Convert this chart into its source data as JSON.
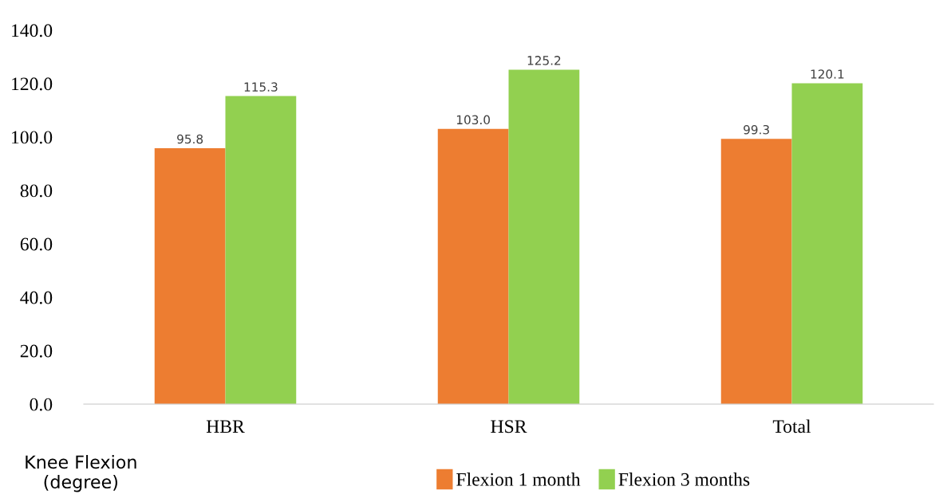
{
  "chart_data": {
    "type": "bar",
    "categories": [
      "HBR",
      "HSR",
      "Total"
    ],
    "series": [
      {
        "name": "Flexion 1 month",
        "color": "#ed7d31",
        "values": [
          95.8,
          103.0,
          99.3
        ],
        "value_labels": [
          "95.8",
          "103.0",
          "99.3"
        ]
      },
      {
        "name": "Flexion 3 months",
        "color": "#92d050",
        "values": [
          115.3,
          125.2,
          120.1
        ],
        "value_labels": [
          "115.3",
          "125.2",
          "120.1"
        ]
      }
    ],
    "ylabel": "Knee Flexion\n(degree)",
    "ylim": [
      0,
      140
    ],
    "yticks": [
      {
        "value": 0,
        "label": "0.0"
      },
      {
        "value": 20,
        "label": "20.0"
      },
      {
        "value": 40,
        "label": "40.0"
      },
      {
        "value": 60,
        "label": "60.0"
      },
      {
        "value": 80,
        "label": "80.0"
      },
      {
        "value": 100,
        "label": "100.0"
      },
      {
        "value": 120,
        "label": "120.0"
      },
      {
        "value": 140,
        "label": "140.0"
      }
    ],
    "legend": "bottom",
    "grid": false
  }
}
